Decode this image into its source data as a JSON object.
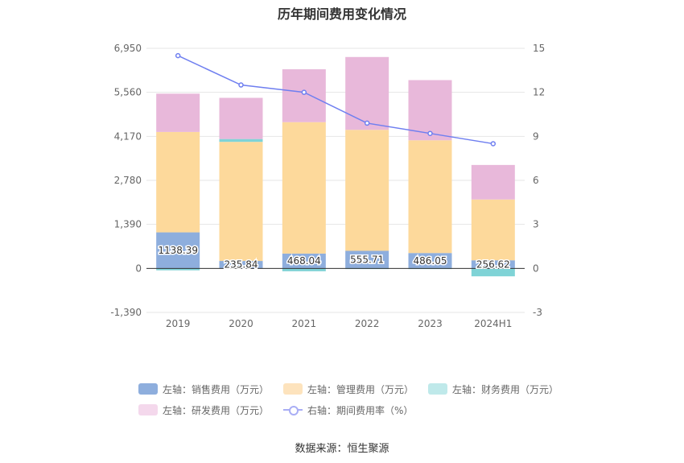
{
  "title": "历年期间费用变化情况",
  "source": "数据来源：恒生聚源",
  "colors": {
    "sales": "#8eaedd",
    "admin": "#fdd99b",
    "finance": "#7fd3d6",
    "rnd": "#e8b8da",
    "rate": "#6f7ff0"
  },
  "legend": [
    {
      "label": "左轴：销售费用（万元）",
      "color": "#8eaedd",
      "kind": "box"
    },
    {
      "label": "左轴：管理费用（万元）",
      "color": "#fde3bd",
      "kind": "box"
    },
    {
      "label": "左轴：财务费用（万元）",
      "color": "#bfe9ea",
      "kind": "box"
    },
    {
      "label": "左轴：研发费用（万元）",
      "color": "#f4d8ec",
      "kind": "box"
    },
    {
      "label": "右轴：期间费用率（%）",
      "color": "#a9aef5",
      "kind": "line"
    }
  ],
  "chart_data": {
    "type": "bar",
    "stacked": true,
    "categories": [
      "2019",
      "2020",
      "2021",
      "2022",
      "2023",
      "2024H1"
    ],
    "left_axis": {
      "ticks": [
        "6,950",
        "5,560",
        "4,170",
        "2,780",
        "1,390",
        "0",
        "-1,390"
      ],
      "ylim": [
        -1390,
        6950
      ]
    },
    "right_axis": {
      "ticks": [
        "15",
        "12",
        "9",
        "6",
        "3",
        "0",
        "-3"
      ],
      "ylim": [
        -3,
        15
      ]
    },
    "series": [
      {
        "name": "左轴：销售费用（万元）",
        "key": "sales",
        "axis": "left",
        "values": [
          1138.39,
          235.84,
          468.04,
          555.71,
          486.05,
          256.62
        ],
        "labels": [
          "1138.39",
          "235.84",
          "468.04",
          "555.71",
          "486.05",
          "256.62"
        ]
      },
      {
        "name": "左轴：管理费用（万元）",
        "key": "admin",
        "axis": "left",
        "values": [
          3170,
          3760,
          4150,
          3820,
          3560,
          1920
        ]
      },
      {
        "name": "左轴：财务费用（万元）",
        "key": "finance",
        "axis": "left",
        "values": [
          -60,
          90,
          -90,
          -20,
          -20,
          -250
        ]
      },
      {
        "name": "左轴：研发费用（万元）",
        "key": "rnd",
        "axis": "left",
        "values": [
          1210,
          1300,
          1670,
          2300,
          1900,
          1090
        ]
      },
      {
        "name": "右轴：期间费用率（%）",
        "key": "rate",
        "axis": "right",
        "type": "line",
        "values": [
          14.5,
          12.5,
          12.0,
          9.9,
          9.2,
          8.5
        ]
      }
    ],
    "grid": true,
    "legend_position": "bottom"
  }
}
